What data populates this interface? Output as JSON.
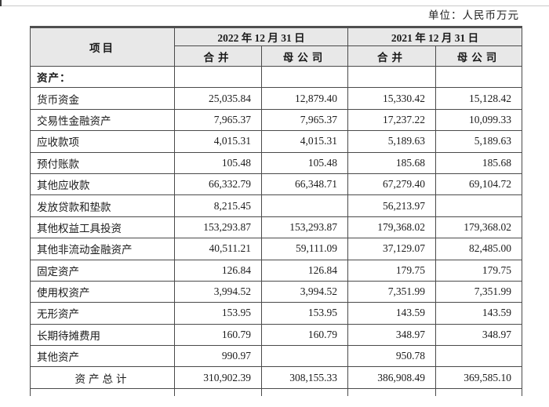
{
  "page": {
    "unit_label": "单位：人民币万元"
  },
  "table": {
    "header": {
      "item": "项目",
      "col_2022": "2022 年 12 月 31 日",
      "col_2021": "2021 年 12 月 31 日",
      "sub": [
        "合并",
        "母公司",
        "合并",
        "母公司"
      ]
    },
    "rows": [
      {
        "label": "资产：",
        "style": "section",
        "values": [
          "",
          "",
          "",
          ""
        ]
      },
      {
        "label": "货币资金",
        "style": "",
        "values": [
          "25,035.84",
          "12,879.40",
          "15,330.42",
          "15,128.42"
        ]
      },
      {
        "label": "交易性金融资产",
        "style": "",
        "values": [
          "7,965.37",
          "7,965.37",
          "17,237.22",
          "10,099.33"
        ]
      },
      {
        "label": "应收款项",
        "style": "",
        "values": [
          "4,015.31",
          "4,015.31",
          "5,189.63",
          "5,189.63"
        ]
      },
      {
        "label": "预付账款",
        "style": "",
        "values": [
          "105.48",
          "105.48",
          "185.68",
          "185.68"
        ]
      },
      {
        "label": "其他应收款",
        "style": "",
        "values": [
          "66,332.79",
          "66,348.71",
          "67,279.40",
          "69,104.72"
        ]
      },
      {
        "label": "发放贷款和垫款",
        "style": "",
        "values": [
          "8,215.45",
          "",
          "56,213.97",
          ""
        ]
      },
      {
        "label": "其他权益工具投资",
        "style": "",
        "values": [
          "153,293.87",
          "153,293.87",
          "179,368.02",
          "179,368.02"
        ]
      },
      {
        "label": "其他非流动金融资产",
        "style": "",
        "values": [
          "40,511.21",
          "59,111.09",
          "37,129.07",
          "82,485.00"
        ]
      },
      {
        "label": "固定资产",
        "style": "",
        "values": [
          "126.84",
          "126.84",
          "179.75",
          "179.75"
        ]
      },
      {
        "label": "使用权资产",
        "style": "",
        "values": [
          "3,994.52",
          "3,994.52",
          "7,351.99",
          "7,351.99"
        ]
      },
      {
        "label": "无形资产",
        "style": "",
        "values": [
          "153.95",
          "153.95",
          "143.59",
          "143.59"
        ]
      },
      {
        "label": "长期待摊费用",
        "style": "",
        "values": [
          "160.79",
          "160.79",
          "348.97",
          "348.97"
        ]
      },
      {
        "label": "其他资产",
        "style": "",
        "values": [
          "990.97",
          "",
          "950.78",
          ""
        ]
      },
      {
        "label": "资产总计",
        "style": "total",
        "values": [
          "310,902.39",
          "308,155.33",
          "386,908.49",
          "369,585.10"
        ]
      }
    ]
  }
}
